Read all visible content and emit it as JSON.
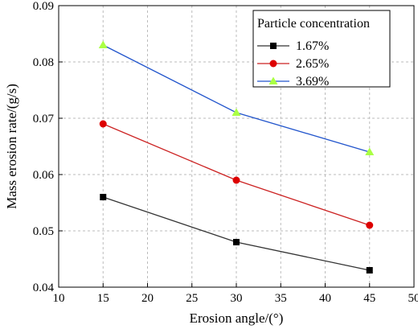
{
  "chart_data": {
    "type": "line",
    "title": "",
    "xlabel": "Erosion angle/(°)",
    "ylabel": "Mass erosion rate/(g/s)",
    "xlim": [
      10,
      50
    ],
    "ylim": [
      0.04,
      0.09
    ],
    "xticks": [
      10,
      15,
      20,
      25,
      30,
      35,
      40,
      45,
      50
    ],
    "yticks": [
      0.04,
      0.05,
      0.06,
      0.07,
      0.08,
      0.09
    ],
    "xtick_labels": [
      "10",
      "15",
      "20",
      "25",
      "30",
      "35",
      "40",
      "45",
      "50"
    ],
    "ytick_labels": [
      "0.04",
      "0.05",
      "0.06",
      "0.07",
      "0.08",
      "0.09"
    ],
    "grid": true,
    "grid_style": "dashed",
    "legend": {
      "title": "Particle concentration",
      "position": "top-right"
    },
    "x": [
      15,
      30,
      45
    ],
    "series": [
      {
        "name": "1.67%",
        "values": [
          0.056,
          0.048,
          0.043
        ],
        "color": "#333333",
        "marker": "square",
        "marker_color": "#000000"
      },
      {
        "name": "2.65%",
        "values": [
          0.069,
          0.059,
          0.051
        ],
        "color": "#cc2222",
        "marker": "circle",
        "marker_color": "#dd0000"
      },
      {
        "name": "3.69%",
        "values": [
          0.083,
          0.071,
          0.064
        ],
        "color": "#2255cc",
        "marker": "triangle",
        "marker_color": "#aaff44"
      }
    ]
  }
}
